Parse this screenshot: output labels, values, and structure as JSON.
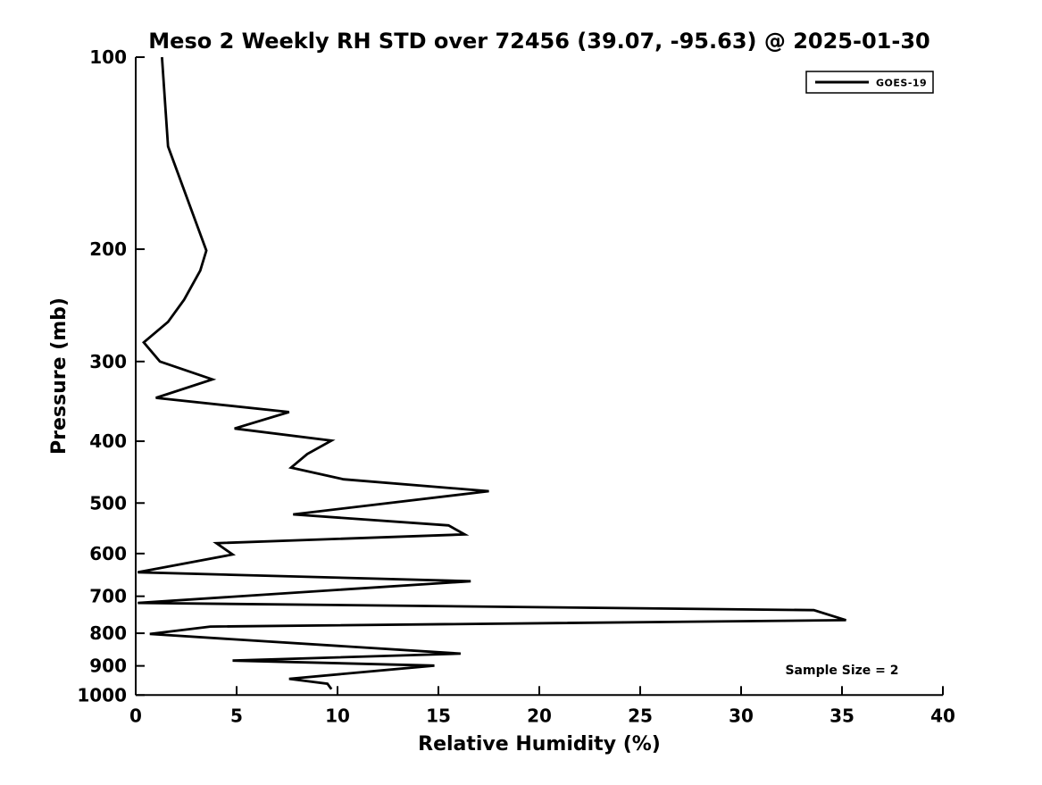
{
  "chart_data": {
    "type": "line",
    "title": "Meso 2 Weekly RH STD over 72456 (39.07, -95.63) @ 2025-01-30",
    "xlabel": "Relative Humidity (%)",
    "ylabel": "Pressure (mb)",
    "xlim": [
      0,
      40
    ],
    "x_ticks": [
      0,
      5,
      10,
      15,
      20,
      25,
      30,
      35,
      40
    ],
    "ylim_mb_top_to_bottom": [
      100,
      1000
    ],
    "y_ticks": [
      100,
      200,
      300,
      400,
      500,
      600,
      700,
      800,
      900,
      1000
    ],
    "yscale": "log",
    "y_axis_inverted": true,
    "grid": false,
    "background_color": "#ffffff",
    "axis_color": "#000000",
    "legend_position": "upper-right",
    "legend": {
      "label": "GOES-19",
      "line_color": "#000000"
    },
    "annotations": [
      {
        "text": "Sample Size = 2",
        "x": 35.0,
        "pressure_mb": 913
      }
    ],
    "series": [
      {
        "name": "GOES-19",
        "color": "#000000",
        "points_pressure_mb_vs_rh_std_pct": [
          [
            100,
            1.3
          ],
          [
            138,
            1.6
          ],
          [
            201,
            3.5
          ],
          [
            216,
            3.2
          ],
          [
            240,
            2.4
          ],
          [
            260,
            1.6
          ],
          [
            280,
            0.4
          ],
          [
            300,
            1.2
          ],
          [
            320,
            3.8
          ],
          [
            342,
            1.0
          ],
          [
            360,
            7.6
          ],
          [
            382,
            4.9
          ],
          [
            399,
            9.7
          ],
          [
            419,
            8.5
          ],
          [
            440,
            7.7
          ],
          [
            459,
            10.3
          ],
          [
            479,
            17.5
          ],
          [
            521,
            7.8
          ],
          [
            542,
            15.5
          ],
          [
            560,
            16.3
          ],
          [
            578,
            4.0
          ],
          [
            602,
            4.8
          ],
          [
            642,
            0.1
          ],
          [
            663,
            16.6
          ],
          [
            717,
            0.1
          ],
          [
            736,
            33.6
          ],
          [
            763,
            35.2
          ],
          [
            781,
            3.7
          ],
          [
            802,
            0.7
          ],
          [
            861,
            16.1
          ],
          [
            883,
            4.8
          ],
          [
            899,
            14.8
          ],
          [
            943,
            7.6
          ],
          [
            960,
            9.5
          ],
          [
            979,
            9.7
          ]
        ]
      }
    ]
  }
}
